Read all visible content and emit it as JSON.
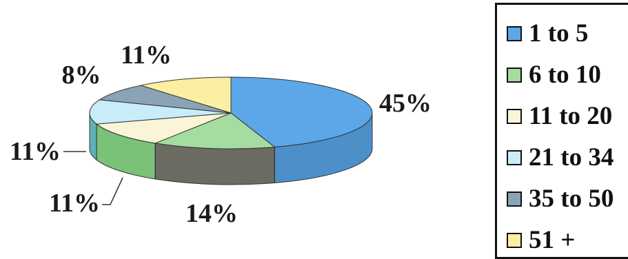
{
  "chart_data": {
    "type": "pie",
    "style": "3d",
    "categories": [
      "1 to 5",
      "6 to 10",
      "11 to 20",
      "21 to 34",
      "35 to 50",
      "51 +"
    ],
    "values": [
      45,
      14,
      11,
      11,
      8,
      11
    ],
    "data_labels": [
      "45%",
      "14%",
      "11%",
      "11%",
      "8%",
      "11%"
    ],
    "colors": [
      "#5ba7e8",
      "#a5dca0",
      "#fbf5d8",
      "#c8ecf8",
      "#8aa3b5",
      "#fbefa3"
    ],
    "side_colors": [
      "#4d8fc8",
      "#6b6b62",
      "#79c278",
      "#5fb0b8",
      "#5e7383",
      "#d8cc72"
    ],
    "legend": {
      "position": "right"
    }
  }
}
